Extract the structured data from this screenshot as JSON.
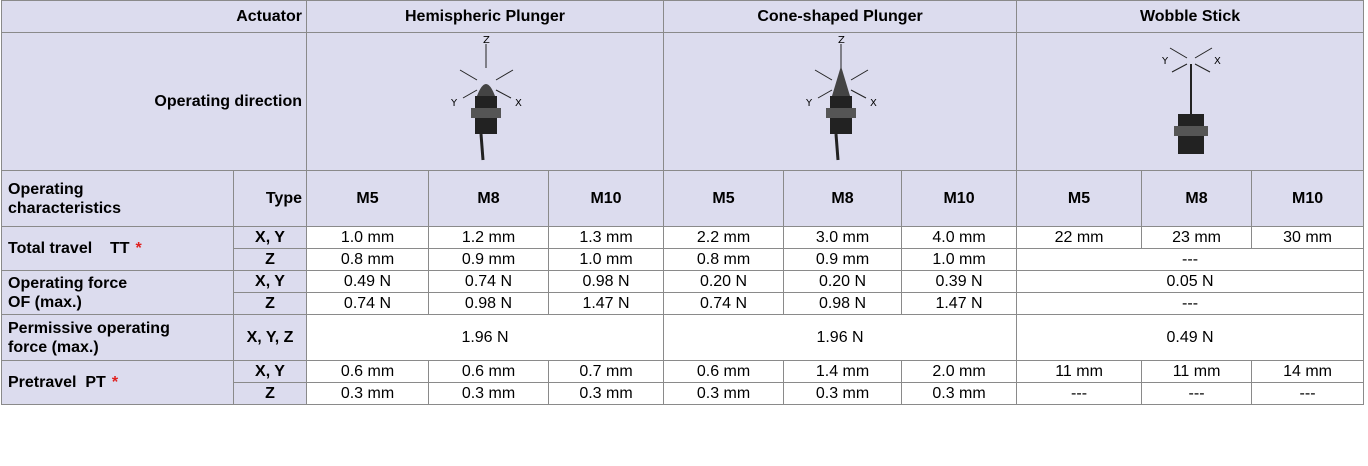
{
  "header": {
    "actuator_label": "Actuator",
    "actuators": [
      "Hemispheric Plunger",
      "Cone-shaped Plunger",
      "Wobble Stick"
    ],
    "direction_label": "Operating direction",
    "diagrams": [
      {
        "labels": [
          "Z",
          "Y",
          "X"
        ]
      },
      {
        "labels": [
          "Z",
          "Y",
          "X"
        ]
      },
      {
        "labels": [
          "Y",
          "X"
        ]
      }
    ],
    "characteristics_label": [
      "Operating",
      "characteristics"
    ],
    "type_label": "Type",
    "types": [
      "M5",
      "M8",
      "M10",
      "M5",
      "M8",
      "M10",
      "M5",
      "M8",
      "M10"
    ]
  },
  "rows": [
    {
      "label": [
        "Total travel    TT"
      ],
      "note": "*",
      "subrows": [
        {
          "axis": "X, Y",
          "groups": [
            [
              "1.0 mm",
              "1.2 mm",
              "1.3 mm"
            ],
            [
              "2.2 mm",
              "3.0 mm",
              "4.0 mm"
            ],
            [
              "22 mm",
              "23 mm",
              "30 mm"
            ]
          ]
        },
        {
          "axis": "Z",
          "groups": [
            [
              "0.8 mm",
              "0.9 mm",
              "1.0 mm"
            ],
            [
              "0.8 mm",
              "0.9 mm",
              "1.0 mm"
            ],
            "---"
          ]
        }
      ]
    },
    {
      "label": [
        "Operating force",
        "OF (max.)"
      ],
      "subrows": [
        {
          "axis": "X, Y",
          "groups": [
            [
              "0.49 N",
              "0.74 N",
              "0.98 N"
            ],
            [
              "0.20 N",
              "0.20 N",
              "0.39 N"
            ],
            "0.05 N"
          ]
        },
        {
          "axis": "Z",
          "groups": [
            [
              "0.74 N",
              "0.98 N",
              "1.47 N"
            ],
            [
              "0.74 N",
              "0.98 N",
              "1.47 N"
            ],
            "---"
          ]
        }
      ]
    },
    {
      "label": [
        "Permissive operating",
        "force (max.)"
      ],
      "subrows": [
        {
          "axis": "X, Y, Z",
          "groups": [
            "1.96 N",
            "1.96 N",
            "0.49 N"
          ]
        }
      ]
    },
    {
      "label": [
        "Pretravel  PT"
      ],
      "note": "*",
      "subrows": [
        {
          "axis": "X, Y",
          "groups": [
            [
              "0.6 mm",
              "0.6 mm",
              "0.7 mm"
            ],
            [
              "0.6 mm",
              "1.4 mm",
              "2.0 mm"
            ],
            [
              "11 mm",
              "11 mm",
              "14 mm"
            ]
          ]
        },
        {
          "axis": "Z",
          "groups": [
            [
              "0.3 mm",
              "0.3 mm",
              "0.3 mm"
            ],
            [
              "0.3 mm",
              "0.3 mm",
              "0.3 mm"
            ],
            [
              "---",
              "---",
              "---"
            ]
          ]
        }
      ]
    }
  ]
}
